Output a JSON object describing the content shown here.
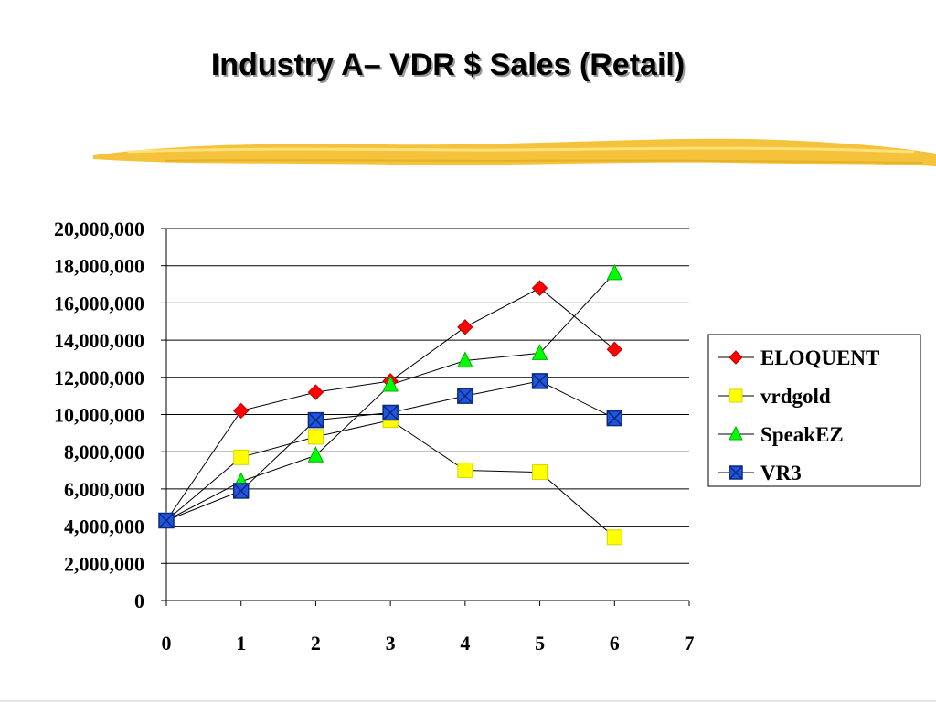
{
  "slide": {
    "title": "Industry A– VDR $ Sales (Retail)"
  },
  "colors": {
    "brush_stroke": "#F5C23C",
    "grid": "#000000",
    "series_line": "#000000"
  },
  "chart_data": {
    "type": "scatter",
    "title": "",
    "xlabel": "",
    "ylabel": "",
    "xlim": [
      0,
      7
    ],
    "ylim": [
      0,
      20000000
    ],
    "x_ticks": [
      "0",
      "1",
      "2",
      "3",
      "4",
      "5",
      "6",
      "7"
    ],
    "y_ticks": [
      "0",
      "2,000,000",
      "4,000,000",
      "6,000,000",
      "8,000,000",
      "10,000,000",
      "12,000,000",
      "14,000,000",
      "16,000,000",
      "18,000,000",
      "20,000,000"
    ],
    "grid": "horizontal",
    "legend_position": "right",
    "series": [
      {
        "name": "ELOQUENT",
        "marker": "diamond",
        "color": "#FF0000",
        "x": [
          0,
          1,
          2,
          3,
          4,
          5,
          6
        ],
        "y": [
          4300000,
          10200000,
          11200000,
          11800000,
          14700000,
          16800000,
          13500000
        ]
      },
      {
        "name": "vrdgold",
        "marker": "square",
        "color": "#FFFF00",
        "x": [
          0,
          1,
          2,
          3,
          4,
          5,
          6
        ],
        "y": [
          4300000,
          7700000,
          8800000,
          9700000,
          7000000,
          6900000,
          3400000
        ]
      },
      {
        "name": "SpeakEZ",
        "marker": "triangle",
        "color": "#00FF00",
        "x": [
          0,
          1,
          2,
          3,
          4,
          5,
          6
        ],
        "y": [
          4300000,
          6400000,
          7800000,
          11600000,
          12900000,
          13300000,
          17600000
        ]
      },
      {
        "name": "VR3",
        "marker": "x-square",
        "color": "#2255DD",
        "x": [
          0,
          1,
          2,
          3,
          4,
          5,
          6
        ],
        "y": [
          4300000,
          5900000,
          9700000,
          10100000,
          11000000,
          11800000,
          9800000
        ]
      }
    ]
  }
}
